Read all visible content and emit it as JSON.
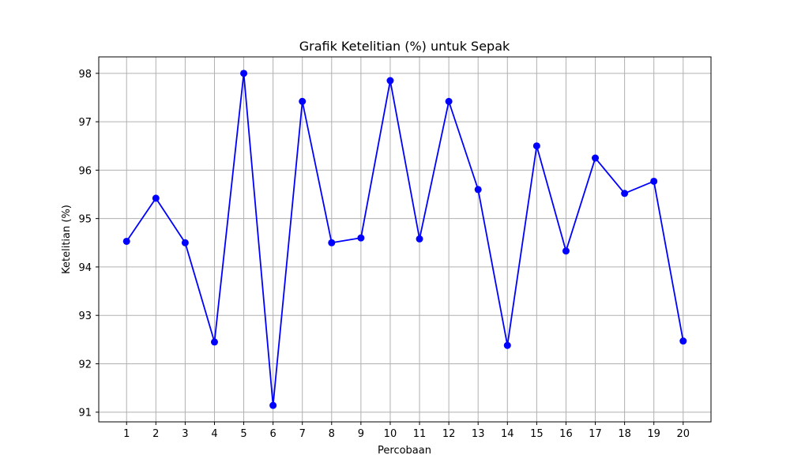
{
  "chart_data": {
    "type": "line",
    "title": "Grafik Ketelitian (%) untuk Sepak",
    "xlabel": "Percobaan",
    "ylabel": "Ketelitian (%)",
    "x": [
      1,
      2,
      3,
      4,
      5,
      6,
      7,
      8,
      9,
      10,
      11,
      12,
      13,
      14,
      15,
      16,
      17,
      18,
      19,
      20
    ],
    "series": [
      {
        "name": "",
        "values": [
          94.53,
          95.42,
          94.5,
          92.45,
          98.0,
          91.14,
          97.42,
          94.5,
          94.6,
          97.85,
          94.58,
          97.42,
          95.6,
          92.38,
          96.5,
          94.33,
          96.25,
          95.52,
          95.77,
          92.47
        ]
      }
    ],
    "xticks": [
      "1",
      "2",
      "3",
      "4",
      "5",
      "6",
      "7",
      "8",
      "9",
      "10",
      "11",
      "12",
      "13",
      "14",
      "15",
      "16",
      "17",
      "18",
      "19",
      "20"
    ],
    "yticks": [
      "91",
      "92",
      "93",
      "94",
      "95",
      "96",
      "97",
      "98"
    ],
    "xlim": [
      0.05,
      20.95
    ],
    "ylim": [
      90.8,
      98.34
    ],
    "grid": true,
    "legend": "none",
    "colors": {
      "line": "#0000ff",
      "marker": "#0000ff",
      "grid": "#b0b0b0",
      "axes": "#000000"
    }
  }
}
